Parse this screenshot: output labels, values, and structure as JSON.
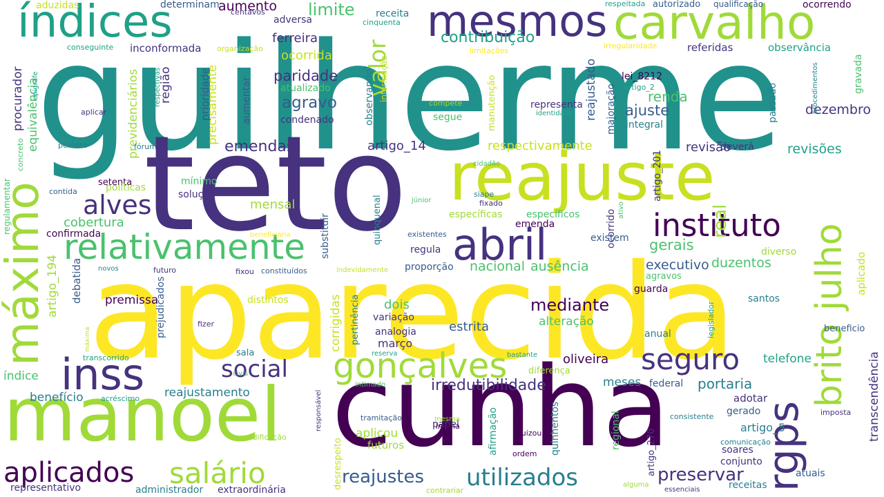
{
  "palette": {
    "dark_purple": "#440154",
    "indigo": "#46327e",
    "blue": "#365c8d",
    "steel": "#277f8e",
    "teal": "#1fa187",
    "green": "#4ac16d",
    "lime": "#a0da39",
    "yellow": "#fde725"
  },
  "words": [
    {
      "text": "guilherme",
      "color": "#21918c"
    },
    {
      "text": "teto",
      "color": "#46327e"
    },
    {
      "text": "aparecida",
      "color": "#fde725"
    },
    {
      "text": "cunha",
      "color": "#440154"
    },
    {
      "text": "reajuste",
      "color": "#c8e020"
    },
    {
      "text": "manoel",
      "color": "#a0da39"
    },
    {
      "text": "índices",
      "color": "#1fa187"
    },
    {
      "text": "mesmos",
      "color": "#46327e"
    },
    {
      "text": "carvalho",
      "color": "#a0da39"
    },
    {
      "text": "máximo",
      "color": "#a0da39"
    },
    {
      "text": "relativamente",
      "color": "#4ac16d"
    },
    {
      "text": "abril",
      "color": "#46327e"
    },
    {
      "text": "inss",
      "color": "#46327e"
    },
    {
      "text": "instituto",
      "color": "#440154"
    },
    {
      "text": "rgps",
      "color": "#46327e"
    },
    {
      "text": "brito",
      "color": "#a0da39"
    },
    {
      "text": "julho",
      "color": "#a0da39"
    },
    {
      "text": "seguro",
      "color": "#46327e"
    },
    {
      "text": "gonçalves",
      "color": "#a0da39"
    },
    {
      "text": "social",
      "color": "#46327e"
    },
    {
      "text": "aplicados",
      "color": "#440154"
    },
    {
      "text": "salário",
      "color": "#a0da39"
    },
    {
      "text": "utilizados",
      "color": "#277f8e"
    },
    {
      "text": "reajustes",
      "color": "#365c8d"
    },
    {
      "text": "preservar",
      "color": "#46327e"
    },
    {
      "text": "alves",
      "color": "#46327e"
    },
    {
      "text": "valor",
      "color": "#a0da39"
    },
    {
      "text": "mediante",
      "color": "#440154"
    },
    {
      "text": "irredutibilidade",
      "color": "#46327e"
    },
    {
      "text": "oliveira",
      "color": "#440154"
    },
    {
      "text": "portaria",
      "color": "#277f8e"
    },
    {
      "text": "aumento",
      "color": "#440154"
    },
    {
      "text": "limite",
      "color": "#4ac16d"
    },
    {
      "text": "contribuição",
      "color": "#1fa187"
    },
    {
      "text": "paridade",
      "color": "#46327e"
    },
    {
      "text": "agravo",
      "color": "#365c8d"
    },
    {
      "text": "emendas",
      "color": "#46327e"
    },
    {
      "text": "cobertura",
      "color": "#4ac16d"
    },
    {
      "text": "mensal",
      "color": "#a0da39"
    },
    {
      "text": "real",
      "color": "#a0da39"
    },
    {
      "text": "gerais",
      "color": "#4ac16d"
    },
    {
      "text": "executivo",
      "color": "#365c8d"
    },
    {
      "text": "duzentos",
      "color": "#4ac16d"
    },
    {
      "text": "nacional",
      "color": "#4ac16d"
    },
    {
      "text": "ausência",
      "color": "#4ac16d"
    },
    {
      "text": "ajuste",
      "color": "#365c8d"
    },
    {
      "text": "renda",
      "color": "#4ac16d"
    },
    {
      "text": "dezembro",
      "color": "#46327e"
    },
    {
      "text": "revisão",
      "color": "#46327e"
    },
    {
      "text": "revisões",
      "color": "#1fa187"
    },
    {
      "text": "respectivamente",
      "color": "#c8e020"
    },
    {
      "text": "artigo_14",
      "color": "#46327e"
    },
    {
      "text": "ferreira",
      "color": "#46327e"
    },
    {
      "text": "ocorrida",
      "color": "#c8e020"
    },
    {
      "text": "receita",
      "color": "#277f8e"
    },
    {
      "text": "adversa",
      "color": "#46327e"
    },
    {
      "text": "determinam",
      "color": "#365c8d"
    },
    {
      "text": "aduzidas",
      "color": "#c8e020"
    },
    {
      "text": "centavos",
      "color": "#46327e"
    },
    {
      "text": "cinquenta",
      "color": "#1fa187"
    },
    {
      "text": "autorizado",
      "color": "#365c8d"
    },
    {
      "text": "qualificação",
      "color": "#365c8d"
    },
    {
      "text": "respeitada",
      "color": "#1fa187"
    },
    {
      "text": "ocorrendo",
      "color": "#440154"
    },
    {
      "text": "referidas",
      "color": "#46327e"
    },
    {
      "text": "observância",
      "color": "#1fa187"
    },
    {
      "text": "inconformada",
      "color": "#46327e"
    },
    {
      "text": "organização",
      "color": "#c8e020"
    },
    {
      "text": "limitações",
      "color": "#fde725"
    },
    {
      "text": "irregularidade",
      "color": "#fde725"
    },
    {
      "text": "conseguinte",
      "color": "#1fa187"
    },
    {
      "text": "procurador",
      "color": "#46327e"
    },
    {
      "text": "equivalência",
      "color": "#4ac16d"
    },
    {
      "text": "região",
      "color": "#46327e"
    },
    {
      "text": "previdenciários",
      "color": "#a0da39"
    },
    {
      "text": "precisamente",
      "color": "#c8e020"
    },
    {
      "text": "prioridade",
      "color": "#365c8d"
    },
    {
      "text": "aumentar",
      "color": "#365c8d"
    },
    {
      "text": "atualizado",
      "color": "#4ac16d"
    },
    {
      "text": "condenado",
      "color": "#46327e"
    },
    {
      "text": "observando",
      "color": "#277f8e"
    },
    {
      "text": "informação",
      "color": "#c8e020"
    },
    {
      "text": "reajustado",
      "color": "#365c8d"
    },
    {
      "text": "lei_8212",
      "color": "#440154"
    },
    {
      "text": "artigo_2",
      "color": "#1fa187"
    },
    {
      "text": "majoração",
      "color": "#365c8d"
    },
    {
      "text": "passado",
      "color": "#277f8e"
    },
    {
      "text": "procedimentos",
      "color": "#277f8e"
    },
    {
      "text": "gravada",
      "color": "#4ac16d"
    },
    {
      "text": "integral",
      "color": "#277f8e"
    },
    {
      "text": "representa",
      "color": "#46327e"
    },
    {
      "text": "identidade",
      "color": "#1fa187"
    },
    {
      "text": "compete",
      "color": "#a0da39"
    },
    {
      "text": "segue",
      "color": "#4ac16d"
    },
    {
      "text": "manutenção",
      "color": "#c8e020"
    },
    {
      "text": "artigo_201",
      "color": "#46327e"
    },
    {
      "text": "deverá",
      "color": "#46327e"
    },
    {
      "text": "cidadão",
      "color": "#4ac16d"
    },
    {
      "text": "respectivas",
      "color": "#1fa187"
    },
    {
      "text": "epígrafe",
      "color": "#1fa187"
    },
    {
      "text": "aplicar",
      "color": "#46327e"
    },
    {
      "text": "perfeito",
      "color": "#277f8e"
    },
    {
      "text": "fórum",
      "color": "#277f8e"
    },
    {
      "text": "concreto",
      "color": "#4ac16d"
    },
    {
      "text": "regulamentar",
      "color": "#4ac16d"
    },
    {
      "text": "setenta",
      "color": "#440154"
    },
    {
      "text": "políticas",
      "color": "#a0da39"
    },
    {
      "text": "contida",
      "color": "#365c8d"
    },
    {
      "text": "mínimo",
      "color": "#4ac16d"
    },
    {
      "text": "solução",
      "color": "#46327e"
    },
    {
      "text": "substituir",
      "color": "#365c8d"
    },
    {
      "text": "quinquenal",
      "color": "#277f8e"
    },
    {
      "text": "júnior",
      "color": "#4ac16d"
    },
    {
      "text": "siape",
      "color": "#277f8e"
    },
    {
      "text": "fixado",
      "color": "#46327e"
    },
    {
      "text": "ativo",
      "color": "#4ac16d"
    },
    {
      "text": "ocorrido",
      "color": "#46327e"
    },
    {
      "text": "específicas",
      "color": "#a0da39"
    },
    {
      "text": "específicos",
      "color": "#4ac16d"
    },
    {
      "text": "emenda",
      "color": "#440154"
    },
    {
      "text": "existem",
      "color": "#365c8d"
    },
    {
      "text": "existentes",
      "color": "#365c8d"
    },
    {
      "text": "beneficiária",
      "color": "#fde725"
    },
    {
      "text": "confirmada",
      "color": "#440154"
    },
    {
      "text": "regula",
      "color": "#46327e"
    },
    {
      "text": "proporção",
      "color": "#365c8d"
    },
    {
      "text": "diverso",
      "color": "#a0da39"
    },
    {
      "text": "aplicado",
      "color": "#c8e020"
    },
    {
      "text": "agravos",
      "color": "#4ac16d"
    },
    {
      "text": "guarda",
      "color": "#440154"
    },
    {
      "text": "novos",
      "color": "#277f8e"
    },
    {
      "text": "futuro",
      "color": "#46327e"
    },
    {
      "text": "fixou",
      "color": "#46327e"
    },
    {
      "text": "constituídos",
      "color": "#365c8d"
    },
    {
      "text": "indevidamente",
      "color": "#c8e020"
    },
    {
      "text": "debatida",
      "color": "#365c8d"
    },
    {
      "text": "artigo_194",
      "color": "#a0da39"
    },
    {
      "text": "premissa",
      "color": "#440154"
    },
    {
      "text": "prejudicados",
      "color": "#365c8d"
    },
    {
      "text": "distintos",
      "color": "#c8e020"
    },
    {
      "text": "corrigidas",
      "color": "#c8e020"
    },
    {
      "text": "pertinência",
      "color": "#277f8e"
    },
    {
      "text": "dois",
      "color": "#4ac16d"
    },
    {
      "text": "variação",
      "color": "#46327e"
    },
    {
      "text": "analogia",
      "color": "#46327e"
    },
    {
      "text": "março",
      "color": "#46327e"
    },
    {
      "text": "estrita",
      "color": "#365c8d"
    },
    {
      "text": "alteração",
      "color": "#4ac16d"
    },
    {
      "text": "santos",
      "color": "#277f8e"
    },
    {
      "text": "legislador",
      "color": "#1fa187"
    },
    {
      "text": "anual",
      "color": "#277f8e"
    },
    {
      "text": "benefício",
      "color": "#277f8e"
    },
    {
      "text": "beneficio",
      "color": "#365c8d"
    },
    {
      "text": "fizer",
      "color": "#46327e"
    },
    {
      "text": "máxima",
      "color": "#c8e020"
    },
    {
      "text": "transcorrido",
      "color": "#1fa187"
    },
    {
      "text": "sala",
      "color": "#277f8e"
    },
    {
      "text": "reserva",
      "color": "#1fa187"
    },
    {
      "text": "bastante",
      "color": "#1fa187"
    },
    {
      "text": "civis",
      "color": "#4ac16d"
    },
    {
      "text": "diferença",
      "color": "#a0da39"
    },
    {
      "text": "telefone",
      "color": "#1fa187"
    },
    {
      "text": "transcendência",
      "color": "#46327e"
    },
    {
      "text": "índice",
      "color": "#4ac16d"
    },
    {
      "text": "reajustamento",
      "color": "#277f8e"
    },
    {
      "text": "responsável",
      "color": "#46327e"
    },
    {
      "text": "intimado",
      "color": "#4ac16d"
    },
    {
      "text": "acréscimo",
      "color": "#1fa187"
    },
    {
      "text": "meses",
      "color": "#277f8e"
    },
    {
      "text": "federal",
      "color": "#365c8d"
    },
    {
      "text": "adotar",
      "color": "#46327e"
    },
    {
      "text": "gerado",
      "color": "#365c8d"
    },
    {
      "text": "imposta",
      "color": "#46327e"
    },
    {
      "text": "artigo_5",
      "color": "#277f8e"
    },
    {
      "text": "comunicação",
      "color": "#277f8e"
    },
    {
      "text": "consistente",
      "color": "#277f8e"
    },
    {
      "text": "artigo_270",
      "color": "#46327e"
    },
    {
      "text": "papel",
      "color": "#46327e"
    },
    {
      "text": "tramitação",
      "color": "#365c8d"
    },
    {
      "text": "mesma",
      "color": "#a0da39"
    },
    {
      "text": "íntima",
      "color": "#440154"
    },
    {
      "text": "ajuizou",
      "color": "#440154"
    },
    {
      "text": "ordem",
      "color": "#440154"
    },
    {
      "text": "quinhentos",
      "color": "#277f8e"
    },
    {
      "text": "regional",
      "color": "#4ac16d"
    },
    {
      "text": "afirmação",
      "color": "#1fa187"
    },
    {
      "text": "soares",
      "color": "#46327e"
    },
    {
      "text": "conjunto",
      "color": "#46327e"
    },
    {
      "text": "atuais",
      "color": "#365c8d"
    },
    {
      "text": "aplicou",
      "color": "#a0da39"
    },
    {
      "text": "futuros",
      "color": "#a0da39"
    },
    {
      "text": "modificação",
      "color": "#a0da39"
    },
    {
      "text": "desrespeito",
      "color": "#c8e020"
    },
    {
      "text": "representativo",
      "color": "#46327e"
    },
    {
      "text": "administrador",
      "color": "#277f8e"
    },
    {
      "text": "extraordinária",
      "color": "#46327e"
    },
    {
      "text": "contrariar",
      "color": "#a0da39"
    },
    {
      "text": "alguma",
      "color": "#a0da39"
    },
    {
      "text": "essenciais",
      "color": "#46327e"
    },
    {
      "text": "receitas",
      "color": "#277f8e"
    }
  ]
}
